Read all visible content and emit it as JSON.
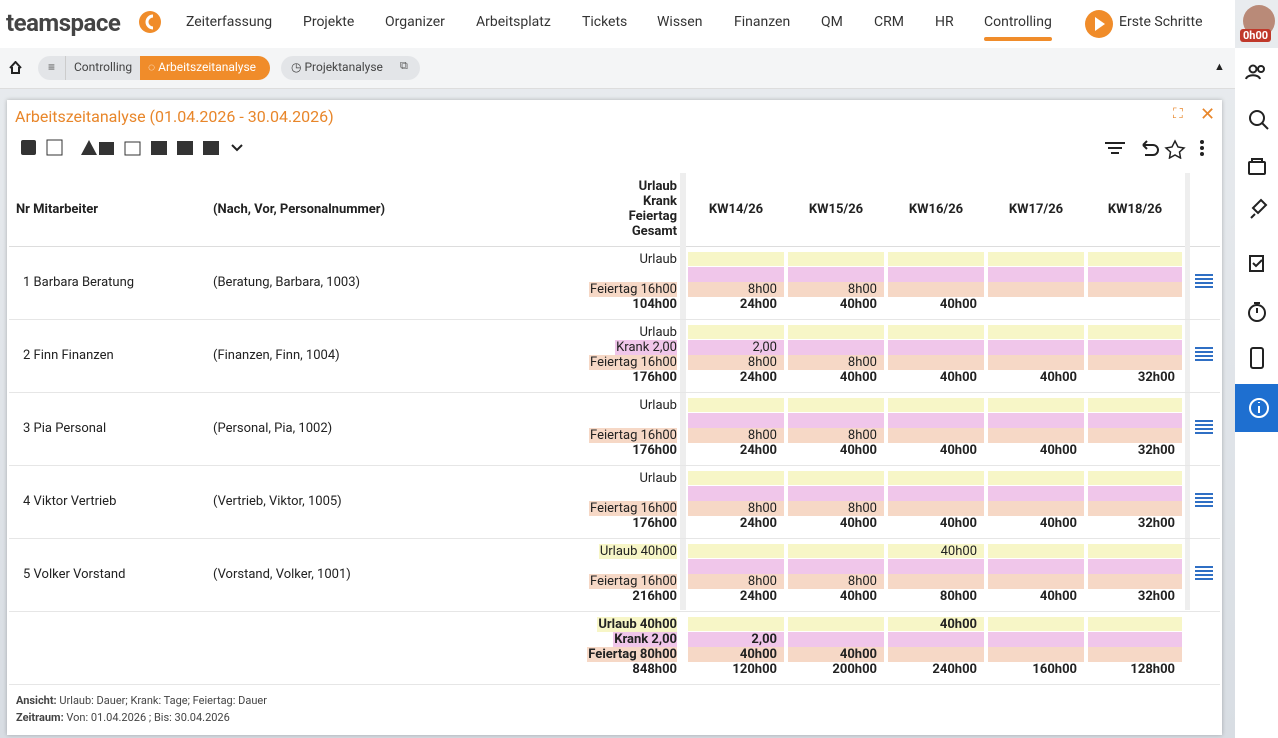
{
  "nav": {
    "logo": "teamspace",
    "menu": [
      "Zeiterfassung",
      "Projekte",
      "Organizer",
      "Arbeitsplatz",
      "Tickets",
      "Wissen",
      "Finanzen",
      "QM",
      "CRM",
      "HR",
      "Controlling"
    ],
    "cta": "Erste Schritte",
    "timer": "0h00"
  },
  "breadcrumb": {
    "items": [
      "Controlling",
      "Arbeitszeitanalyse"
    ],
    "tab": "Projektanalyse"
  },
  "panel": {
    "title": "Arbeitszeitanalyse (01.04.2026 - 30.04.2026)"
  },
  "table": {
    "headers": {
      "nr_name": "Nr Mitarbeiter",
      "key": "(Nach, Vor, Personalnummer)",
      "summary": [
        "Urlaub",
        "Krank",
        "Feiertag",
        "Gesamt"
      ],
      "weeks": [
        "KW14/26",
        "KW15/26",
        "KW16/26",
        "KW17/26",
        "KW18/26"
      ]
    },
    "rows": [
      {
        "nr": 1,
        "name": "Barbara Beratung",
        "key": "(Beratung, Barbara, 1003)",
        "summary": [
          "Urlaub",
          null,
          "Feiertag 16h00",
          "104h00"
        ],
        "weeks": [
          [
            null,
            null,
            "8h00",
            "24h00"
          ],
          [
            null,
            null,
            "8h00",
            "40h00"
          ],
          [
            null,
            null,
            null,
            "40h00"
          ],
          [
            null,
            null,
            null,
            null
          ],
          [
            null,
            null,
            null,
            null
          ]
        ]
      },
      {
        "nr": 2,
        "name": "Finn Finanzen",
        "key": "(Finanzen, Finn, 1004)",
        "summary": [
          "Urlaub",
          "Krank 2,00",
          "Feiertag 16h00",
          "176h00"
        ],
        "weeks": [
          [
            null,
            "2,00",
            "8h00",
            "24h00"
          ],
          [
            null,
            null,
            "8h00",
            "40h00"
          ],
          [
            null,
            null,
            null,
            "40h00"
          ],
          [
            null,
            null,
            null,
            "40h00"
          ],
          [
            null,
            null,
            null,
            "32h00"
          ]
        ]
      },
      {
        "nr": 3,
        "name": "Pia Personal",
        "key": "(Personal, Pia, 1002)",
        "summary": [
          "Urlaub",
          null,
          "Feiertag 16h00",
          "176h00"
        ],
        "weeks": [
          [
            null,
            null,
            "8h00",
            "24h00"
          ],
          [
            null,
            null,
            "8h00",
            "40h00"
          ],
          [
            null,
            null,
            null,
            "40h00"
          ],
          [
            null,
            null,
            null,
            "40h00"
          ],
          [
            null,
            null,
            null,
            "32h00"
          ]
        ]
      },
      {
        "nr": 4,
        "name": "Viktor Vertrieb",
        "key": "(Vertrieb, Viktor, 1005)",
        "summary": [
          "Urlaub",
          null,
          "Feiertag 16h00",
          "176h00"
        ],
        "weeks": [
          [
            null,
            null,
            "8h00",
            "24h00"
          ],
          [
            null,
            null,
            "8h00",
            "40h00"
          ],
          [
            null,
            null,
            null,
            "40h00"
          ],
          [
            null,
            null,
            null,
            "40h00"
          ],
          [
            null,
            null,
            null,
            "32h00"
          ]
        ]
      },
      {
        "nr": 5,
        "name": "Volker Vorstand",
        "key": "(Vorstand, Volker, 1001)",
        "summary": [
          "Urlaub 40h00",
          null,
          "Feiertag 16h00",
          "216h00"
        ],
        "weeks": [
          [
            null,
            null,
            "8h00",
            "24h00"
          ],
          [
            null,
            null,
            "8h00",
            "40h00"
          ],
          [
            "40h00",
            null,
            null,
            "80h00"
          ],
          [
            null,
            null,
            null,
            "40h00"
          ],
          [
            null,
            null,
            null,
            "32h00"
          ]
        ]
      }
    ],
    "total": {
      "summary": [
        "Urlaub 40h00",
        "Krank 2,00",
        "Feiertag 80h00",
        "848h00"
      ],
      "weeks": [
        [
          null,
          "2,00",
          "40h00",
          "120h00"
        ],
        [
          null,
          null,
          "40h00",
          "200h00"
        ],
        [
          "40h00",
          null,
          null,
          "240h00"
        ],
        [
          null,
          null,
          null,
          "160h00"
        ],
        [
          null,
          null,
          null,
          "128h00"
        ]
      ]
    }
  },
  "footer": [
    {
      "label": "Ansicht:",
      "text": "Urlaub: Dauer; Krank: Tage; Feiertag: Dauer"
    },
    {
      "label": "Zeitraum:",
      "text": "Von: 01.04.2026 ; Bis: 30.04.2026"
    }
  ]
}
